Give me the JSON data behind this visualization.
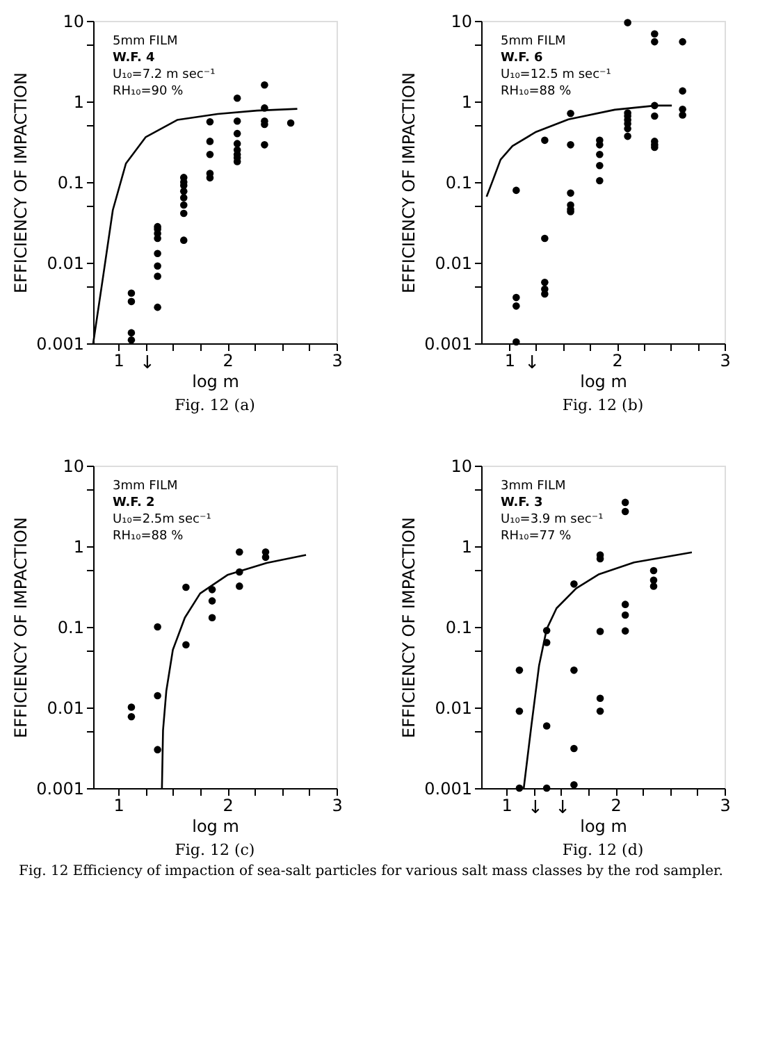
{
  "chart_data": [
    {
      "type": "scatter",
      "title": "Fig. 12 (a)",
      "xlabel": "log m",
      "ylabel": "EFFICIENCY OF IMPACTION",
      "log": "y",
      "marker": "circle",
      "xlim": [
        0.77,
        3
      ],
      "ylim": [
        0.001,
        10
      ],
      "xticks": [
        1,
        {
          "value": 1.25,
          "label": null
        },
        {
          "value": 1.5,
          "label": null
        },
        {
          "value": 1.75,
          "label": null
        },
        2,
        {
          "value": 2.25,
          "label": null
        },
        {
          "value": 2.5,
          "label": null
        },
        {
          "value": 2.75,
          "label": null
        },
        3
      ],
      "yticks": [
        0.001,
        {
          "value": 0.005,
          "label": null
        },
        0.01,
        {
          "value": 0.05,
          "label": null
        },
        0.1,
        {
          "value": 0.5,
          "label": null
        },
        1,
        {
          "value": 5,
          "label": null
        },
        10
      ],
      "annotations": [
        "5mm  FILM",
        "W.F. 4",
        "U₁₀=7.2 m sec⁻¹",
        "RH₁₀=90 %",
        {
          "text": "↓",
          "x": 1.12,
          "y": 0.001
        }
      ],
      "series": [
        {
          "color": "#000000",
          "x": [
            1.12,
            1.12,
            1.12,
            1.12,
            1.36,
            1.36,
            1.36,
            1.36,
            1.36,
            1.36,
            1.36,
            1.36,
            1.6,
            1.6,
            1.6,
            1.6,
            1.6,
            1.6,
            1.6,
            1.6,
            1.84,
            1.84,
            1.84,
            1.84,
            1.84,
            2.09,
            2.09,
            2.09,
            2.09,
            2.09,
            2.09,
            2.09,
            2.09,
            2.34,
            2.34,
            2.34,
            2.34,
            2.34,
            2.58
          ],
          "values": [
            0.0042,
            0.0033,
            0.00135,
            0.0011,
            0.028,
            0.026,
            0.023,
            0.02,
            0.013,
            0.0091,
            0.0068,
            0.0028,
            0.114,
            0.1,
            0.091,
            0.077,
            0.064,
            0.052,
            0.041,
            0.019,
            0.56,
            0.32,
            0.22,
            0.128,
            0.113,
            1.1,
            0.57,
            0.4,
            0.3,
            0.25,
            0.22,
            0.2,
            0.18,
            1.6,
            0.83,
            0.57,
            0.52,
            0.29,
            0.54
          ]
        },
        {
          "type": "line",
          "marker": "none",
          "line_style": "solid",
          "color": "#000000",
          "x": [
            0.77,
            0.86,
            0.95,
            1.07,
            1.25,
            1.54,
            1.91,
            2.27,
            2.64
          ],
          "values": [
            0.001,
            0.0066,
            0.045,
            0.17,
            0.36,
            0.59,
            0.7,
            0.77,
            0.81
          ]
        }
      ]
    },
    {
      "type": "scatter",
      "title": "Fig. 12 (b)",
      "xlabel": "log m",
      "ylabel": "EFFICIENCY OF IMPACTION",
      "log": "y",
      "marker": "circle",
      "xlim": [
        0.74,
        3
      ],
      "ylim": [
        0.001,
        10
      ],
      "xticks": [
        1,
        {
          "value": 1.25,
          "label": null
        },
        {
          "value": 1.5,
          "label": null
        },
        {
          "value": 1.75,
          "label": null
        },
        2,
        {
          "value": 2.25,
          "label": null
        },
        {
          "value": 2.5,
          "label": null
        },
        {
          "value": 2.75,
          "label": null
        },
        3
      ],
      "yticks": [
        0.001,
        {
          "value": 0.005,
          "label": null
        },
        0.01,
        {
          "value": 0.05,
          "label": null
        },
        0.1,
        {
          "value": 0.5,
          "label": null
        },
        1,
        {
          "value": 5,
          "label": null
        },
        10
      ],
      "annotations": [
        "5mm  FILM",
        "W.F. 6",
        "U₁₀=12.5 m sec⁻¹",
        "RH₁₀=88 %",
        {
          "text": "↓",
          "x": 1.065,
          "y": 0.001
        }
      ],
      "series": [
        {
          "color": "#000000",
          "x": [
            1.065,
            1.065,
            1.065,
            1.065,
            1.33,
            1.33,
            1.33,
            1.33,
            1.33,
            1.57,
            1.57,
            1.57,
            1.57,
            1.57,
            1.57,
            1.84,
            1.84,
            1.84,
            1.84,
            1.84,
            2.1,
            2.1,
            2.1,
            2.1,
            2.1,
            2.1,
            2.1,
            2.35,
            2.35,
            2.35,
            2.35,
            2.35,
            2.35,
            2.35,
            2.61,
            2.61,
            2.61,
            2.61
          ],
          "values": [
            0.079,
            0.0037,
            0.0029,
            0.00104,
            0.33,
            0.02,
            0.0057,
            0.0047,
            0.0041,
            0.71,
            0.29,
            0.073,
            0.052,
            0.046,
            0.043,
            0.33,
            0.29,
            0.22,
            0.16,
            0.104,
            9.5,
            0.72,
            0.66,
            0.59,
            0.53,
            0.46,
            0.37,
            6.9,
            5.5,
            0.89,
            0.66,
            0.32,
            0.29,
            0.27,
            5.5,
            1.35,
            0.8,
            0.68
          ]
        },
        {
          "type": "line",
          "marker": "none",
          "line_style": "solid",
          "color": "#000000",
          "x": [
            0.79,
            0.85,
            0.92,
            1.03,
            1.25,
            1.55,
            1.98,
            2.36,
            2.51
          ],
          "values": [
            0.066,
            0.107,
            0.19,
            0.28,
            0.42,
            0.6,
            0.79,
            0.89,
            0.89
          ]
        }
      ]
    },
    {
      "type": "scatter",
      "title": "Fig. 12 (c)",
      "xlabel": "log m",
      "ylabel": "EFFICIENCY OF IMPACTION",
      "log": "y",
      "marker": "circle",
      "xlim": [
        0.77,
        3
      ],
      "ylim": [
        0.001,
        10
      ],
      "xticks": [
        1,
        {
          "value": 1.25,
          "label": null
        },
        {
          "value": 1.5,
          "label": null
        },
        {
          "value": 1.75,
          "label": null
        },
        2,
        {
          "value": 2.25,
          "label": null
        },
        {
          "value": 2.5,
          "label": null
        },
        {
          "value": 2.75,
          "label": null
        },
        3
      ],
      "yticks": [
        0.001,
        {
          "value": 0.005,
          "label": null
        },
        0.01,
        {
          "value": 0.05,
          "label": null
        },
        0.1,
        {
          "value": 0.5,
          "label": null
        },
        1,
        {
          "value": 5,
          "label": null
        },
        10
      ],
      "annotations": [
        "3mm  FILM",
        "W.F. 2",
        "U₁₀=2.5m sec⁻¹",
        "RH₁₀=88 %"
      ],
      "series": [
        {
          "color": "#000000",
          "x": [
            1.12,
            1.12,
            1.36,
            1.36,
            1.36,
            1.62,
            1.62,
            1.86,
            1.86,
            1.86,
            2.11,
            2.11,
            2.11,
            2.35,
            2.35
          ],
          "values": [
            0.0101,
            0.0077,
            0.1,
            0.014,
            0.003,
            0.31,
            0.06,
            0.29,
            0.21,
            0.13,
            0.85,
            0.48,
            0.32,
            0.85,
            0.73
          ]
        },
        {
          "type": "line",
          "marker": "none",
          "line_style": "solid",
          "color": "#000000",
          "x": [
            1.4,
            1.41,
            1.44,
            1.5,
            1.61,
            1.75,
            2.0,
            2.36,
            2.72
          ],
          "values": [
            0.001,
            0.0052,
            0.016,
            0.052,
            0.13,
            0.26,
            0.44,
            0.62,
            0.78
          ]
        }
      ]
    },
    {
      "type": "scatter",
      "title": "Fig. 12 (d)",
      "xlabel": "log m",
      "ylabel": "EFFICIENCY OF IMPACTION",
      "log": "y",
      "marker": "circle",
      "xlim": [
        0.77,
        3
      ],
      "ylim": [
        0.001,
        10
      ],
      "xticks": [
        1,
        {
          "value": 1.25,
          "label": null
        },
        {
          "value": 1.5,
          "label": null
        },
        {
          "value": 1.75,
          "label": null
        },
        2,
        {
          "value": 2.25,
          "label": null
        },
        {
          "value": 2.5,
          "label": null
        },
        {
          "value": 2.75,
          "label": null
        },
        3
      ],
      "yticks": [
        0.001,
        {
          "value": 0.005,
          "label": null
        },
        0.01,
        {
          "value": 0.05,
          "label": null
        },
        0.1,
        {
          "value": 0.5,
          "label": null
        },
        1,
        {
          "value": 5,
          "label": null
        },
        10
      ],
      "annotations": [
        "3mm  FILM",
        "W.F. 3",
        "U₁₀=3.9 m sec⁻¹",
        "RH₁₀=77 %",
        "Fig. 12  Efficiency of impaction of sea-salt particles for various salt mass classes by the rod sampler.",
        {
          "text": "↓",
          "x": 1.12,
          "y": 0.001
        },
        {
          "text": "↓",
          "x": 1.37,
          "y": 0.001
        }
      ],
      "series": [
        {
          "color": "#000000",
          "x": [
            1.12,
            1.12,
            1.12,
            1.37,
            1.37,
            1.37,
            1.37,
            1.62,
            1.62,
            1.62,
            1.62,
            1.86,
            1.86,
            1.86,
            1.86,
            1.86,
            2.09,
            2.09,
            2.09,
            2.09,
            2.09,
            2.35,
            2.35,
            2.35
          ],
          "values": [
            0.029,
            0.009,
            0.001,
            0.09,
            0.064,
            0.0059,
            0.001,
            0.34,
            0.029,
            0.0031,
            0.0011,
            0.78,
            0.7,
            0.088,
            0.013,
            0.009,
            3.5,
            2.7,
            0.19,
            0.14,
            0.089,
            0.5,
            0.38,
            0.32
          ]
        },
        {
          "type": "line",
          "marker": "none",
          "line_style": "solid",
          "color": "#000000",
          "x": [
            1.16,
            1.23,
            1.3,
            1.37,
            1.46,
            1.64,
            1.85,
            2.17,
            2.7
          ],
          "values": [
            0.001,
            0.006,
            0.033,
            0.094,
            0.17,
            0.3,
            0.45,
            0.63,
            0.84
          ]
        }
      ]
    }
  ]
}
